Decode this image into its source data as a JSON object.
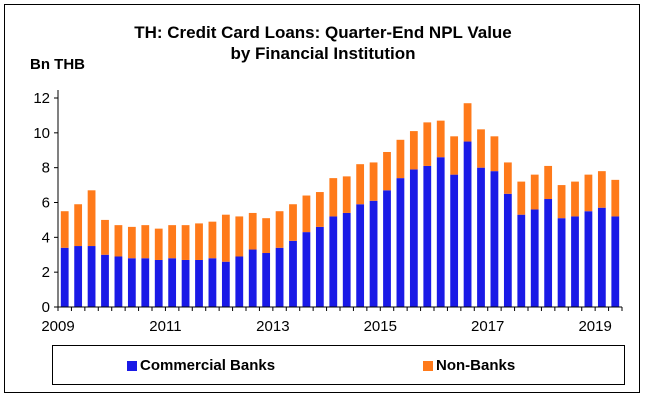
{
  "title_lines": [
    "TH: Credit Card Loans: Quarter-End NPL Value",
    "by Financial Institution"
  ],
  "colors": {
    "commercial": "#1A1AE6",
    "non_banks": "#FF7A1A"
  },
  "chart_data": {
    "type": "bar",
    "stacked": true,
    "title": "TH: Credit Card Loans: Quarter-End NPL Value by Financial Institution",
    "ylabel": "Bn THB",
    "xlabel": "",
    "ylim": [
      0,
      12
    ],
    "yticks": [
      0,
      2,
      4,
      6,
      8,
      10,
      12
    ],
    "xtick_labels": [
      "2009",
      "2011",
      "2013",
      "2015",
      "2017",
      "2019"
    ],
    "grid": false,
    "legend_position": "bottom",
    "categories": [
      "2009Q1",
      "2009Q2",
      "2009Q3",
      "2009Q4",
      "2010Q1",
      "2010Q2",
      "2010Q3",
      "2010Q4",
      "2011Q1",
      "2011Q2",
      "2011Q3",
      "2011Q4",
      "2012Q1",
      "2012Q2",
      "2012Q3",
      "2012Q4",
      "2013Q1",
      "2013Q2",
      "2013Q3",
      "2013Q4",
      "2014Q1",
      "2014Q2",
      "2014Q3",
      "2014Q4",
      "2015Q1",
      "2015Q2",
      "2015Q3",
      "2015Q4",
      "2016Q1",
      "2016Q2",
      "2016Q3",
      "2016Q4",
      "2017Q1",
      "2017Q2",
      "2017Q3",
      "2017Q4",
      "2018Q1",
      "2018Q2",
      "2018Q3",
      "2018Q4",
      "2019Q1",
      "2019Q2"
    ],
    "series": [
      {
        "name": "Commercial Banks",
        "color": "#1A1AE6",
        "values": [
          3.4,
          3.5,
          3.5,
          3.0,
          2.9,
          2.8,
          2.8,
          2.7,
          2.8,
          2.7,
          2.7,
          2.8,
          2.6,
          2.9,
          3.3,
          3.1,
          3.4,
          3.8,
          4.3,
          4.6,
          5.2,
          5.4,
          5.9,
          6.1,
          6.7,
          7.4,
          7.9,
          8.1,
          8.6,
          7.6,
          9.5,
          8.0,
          7.8,
          6.5,
          5.3,
          5.6,
          6.2,
          5.1,
          5.2,
          5.5,
          5.7,
          5.2
        ]
      },
      {
        "name": "Non-Banks",
        "color": "#FF7A1A",
        "values": [
          2.1,
          2.4,
          3.2,
          2.0,
          1.8,
          1.8,
          1.9,
          1.8,
          1.9,
          2.0,
          2.1,
          2.1,
          2.7,
          2.3,
          2.1,
          2.0,
          2.1,
          2.1,
          2.1,
          2.0,
          2.2,
          2.1,
          2.3,
          2.2,
          2.2,
          2.2,
          2.2,
          2.5,
          2.1,
          2.2,
          2.2,
          2.2,
          2.0,
          1.8,
          1.9,
          2.0,
          1.9,
          1.9,
          2.0,
          2.1,
          2.1,
          2.1
        ]
      }
    ]
  }
}
